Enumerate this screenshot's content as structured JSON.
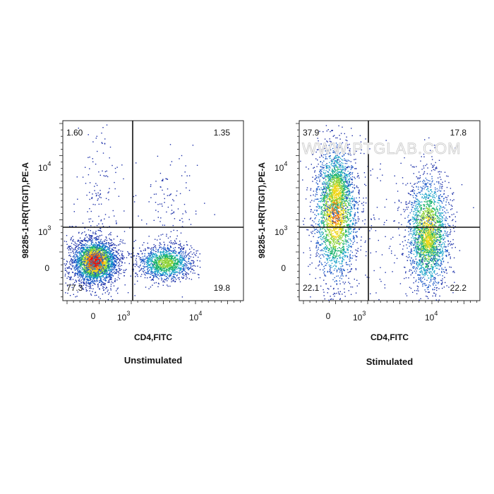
{
  "watermark": "WWW.PTGLAB.COM",
  "chart_data": [
    {
      "type": "scatter",
      "title": "Unstimulated",
      "xlabel": "CD4,FITC",
      "ylabel": "98285-1-RR(TIGIT),PE-A",
      "x_scale": "biexponential",
      "y_scale": "biexponential",
      "x_ticks": [
        "0",
        "10^3",
        "10^4"
      ],
      "y_ticks": [
        "0",
        "10^3",
        "10^4"
      ],
      "gate": {
        "x": 1400,
        "y": 1100
      },
      "quadrants": {
        "upper_left": "1.60",
        "upper_right": "1.35",
        "lower_left": "77.3",
        "lower_right": "19.8"
      },
      "density": "pseudocolor"
    },
    {
      "type": "scatter",
      "title": "Stimulated",
      "xlabel": "CD4,FITC",
      "ylabel": "98285-1-RR(TIGIT),PE-A",
      "x_scale": "biexponential",
      "y_scale": "biexponential",
      "x_ticks": [
        "0",
        "10^3",
        "10^4"
      ],
      "y_ticks": [
        "0",
        "10^3",
        "10^4"
      ],
      "gate": {
        "x": 1400,
        "y": 1100
      },
      "quadrants": {
        "upper_left": "37.9",
        "upper_right": "17.8",
        "lower_left": "22.1",
        "lower_right": "22.2"
      },
      "density": "pseudocolor"
    }
  ]
}
